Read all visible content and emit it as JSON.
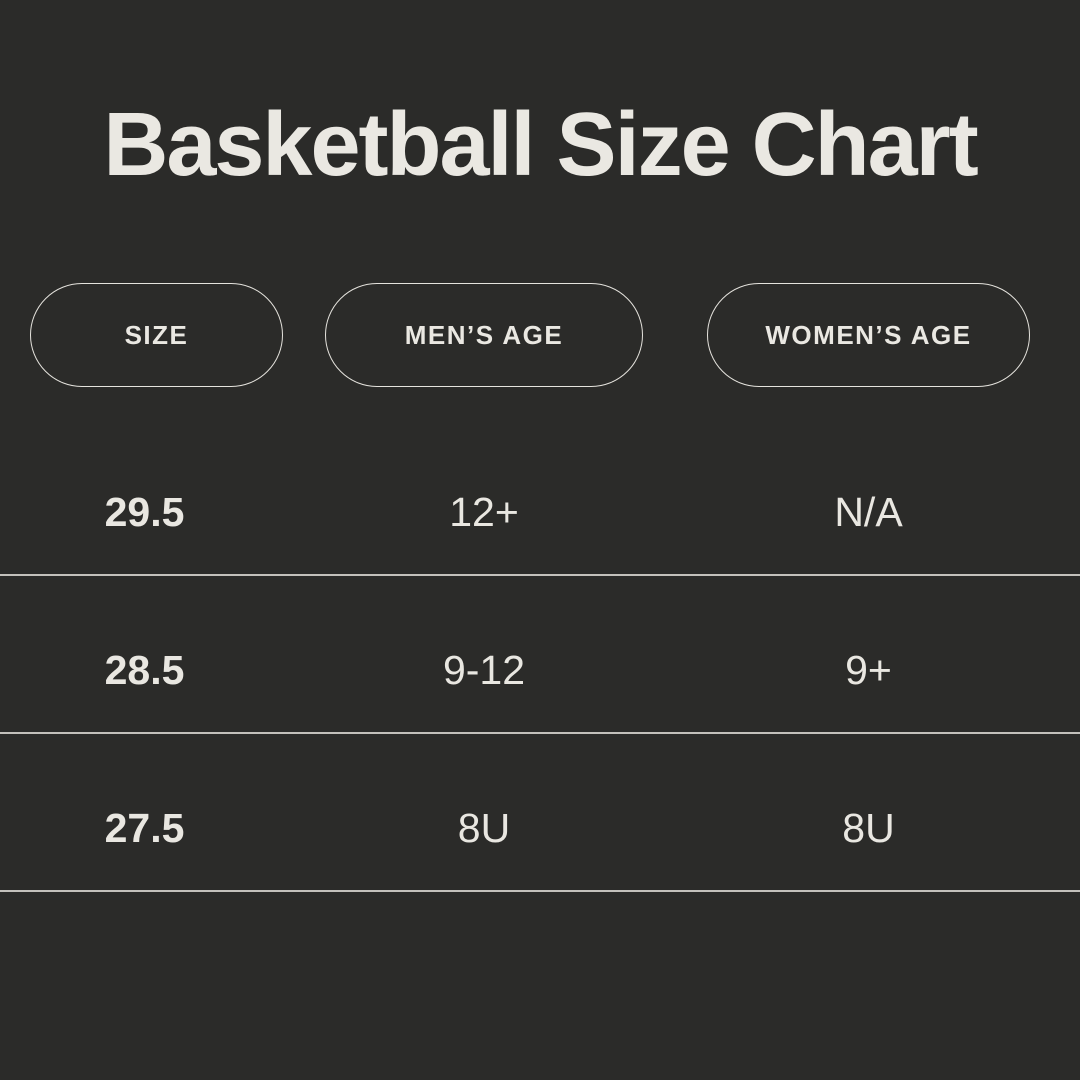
{
  "page": {
    "background_color": "#2b2b29",
    "text_color": "#e9e7e1",
    "accent_line_color": "#dedcd6"
  },
  "title": "Basketball Size Chart",
  "chart_data": {
    "type": "table",
    "title": "Basketball Size Chart",
    "columns": [
      "SIZE",
      "MEN’S AGE",
      "WOMEN’S AGE"
    ],
    "rows": [
      [
        "29.5",
        "12+",
        "N/A"
      ],
      [
        "28.5",
        "9-12",
        "9+"
      ],
      [
        "27.5",
        "8U",
        "8U"
      ]
    ]
  },
  "table": {
    "headers": {
      "size": "SIZE",
      "mens_age": "MEN’S AGE",
      "womens_age": "WOMEN’S AGE"
    },
    "rows": [
      {
        "size": "29.5",
        "mens_age": "12+",
        "womens_age": "N/A"
      },
      {
        "size": "28.5",
        "mens_age": "9-12",
        "womens_age": "9+"
      },
      {
        "size": "27.5",
        "mens_age": "8U",
        "womens_age": "8U"
      }
    ]
  }
}
